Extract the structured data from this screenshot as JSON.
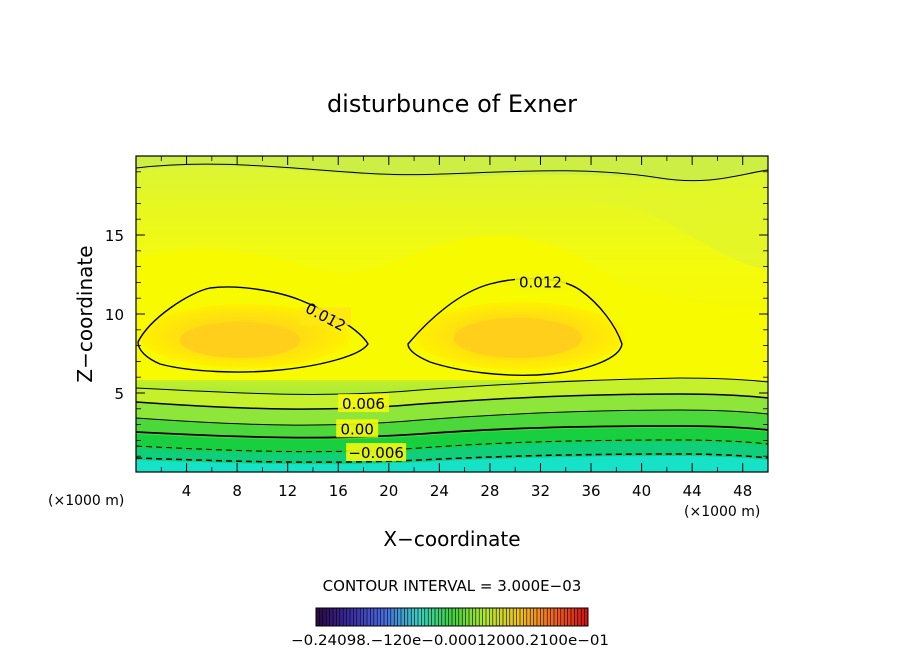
{
  "chart_data": {
    "type": "contour",
    "title": "disturbunce of Exner",
    "xlabel": "X−coordinate",
    "ylabel": "Z−coordinate",
    "x_unit": "(×1000 m)",
    "x_unit_left": "(×1000 m)",
    "xlim": [
      0,
      50
    ],
    "ylim": [
      0,
      20
    ],
    "x_ticks": [
      4,
      8,
      12,
      16,
      20,
      24,
      28,
      32,
      36,
      40,
      44,
      48
    ],
    "y_ticks": [
      5,
      10,
      15
    ],
    "contour_interval_label": "CONTOUR INTERVAL = 3.000E−03",
    "contour_interval": 0.003,
    "contour_labels": [
      {
        "text": "0.012",
        "x": 15,
        "z": 9.8
      },
      {
        "text": "0.012",
        "x": 32,
        "z": 12.0
      },
      {
        "text": "0.006",
        "x": 18,
        "z": 4.3
      },
      {
        "text": "0.00",
        "x": 17.5,
        "z": 2.7
      },
      {
        "text": "−0.006",
        "x": 19,
        "z": 1.2
      }
    ],
    "maxima": [
      {
        "x": 8,
        "z": 8.2,
        "value": 0.014
      },
      {
        "x": 31,
        "z": 8.5,
        "value": 0.014
      }
    ],
    "colorbar": {
      "min_label": "−0.240",
      "tick_labels_overlapped": "−0.24098.−120e−0.00012000.2100e−01",
      "range": [
        -0.024,
        0.024
      ]
    }
  }
}
